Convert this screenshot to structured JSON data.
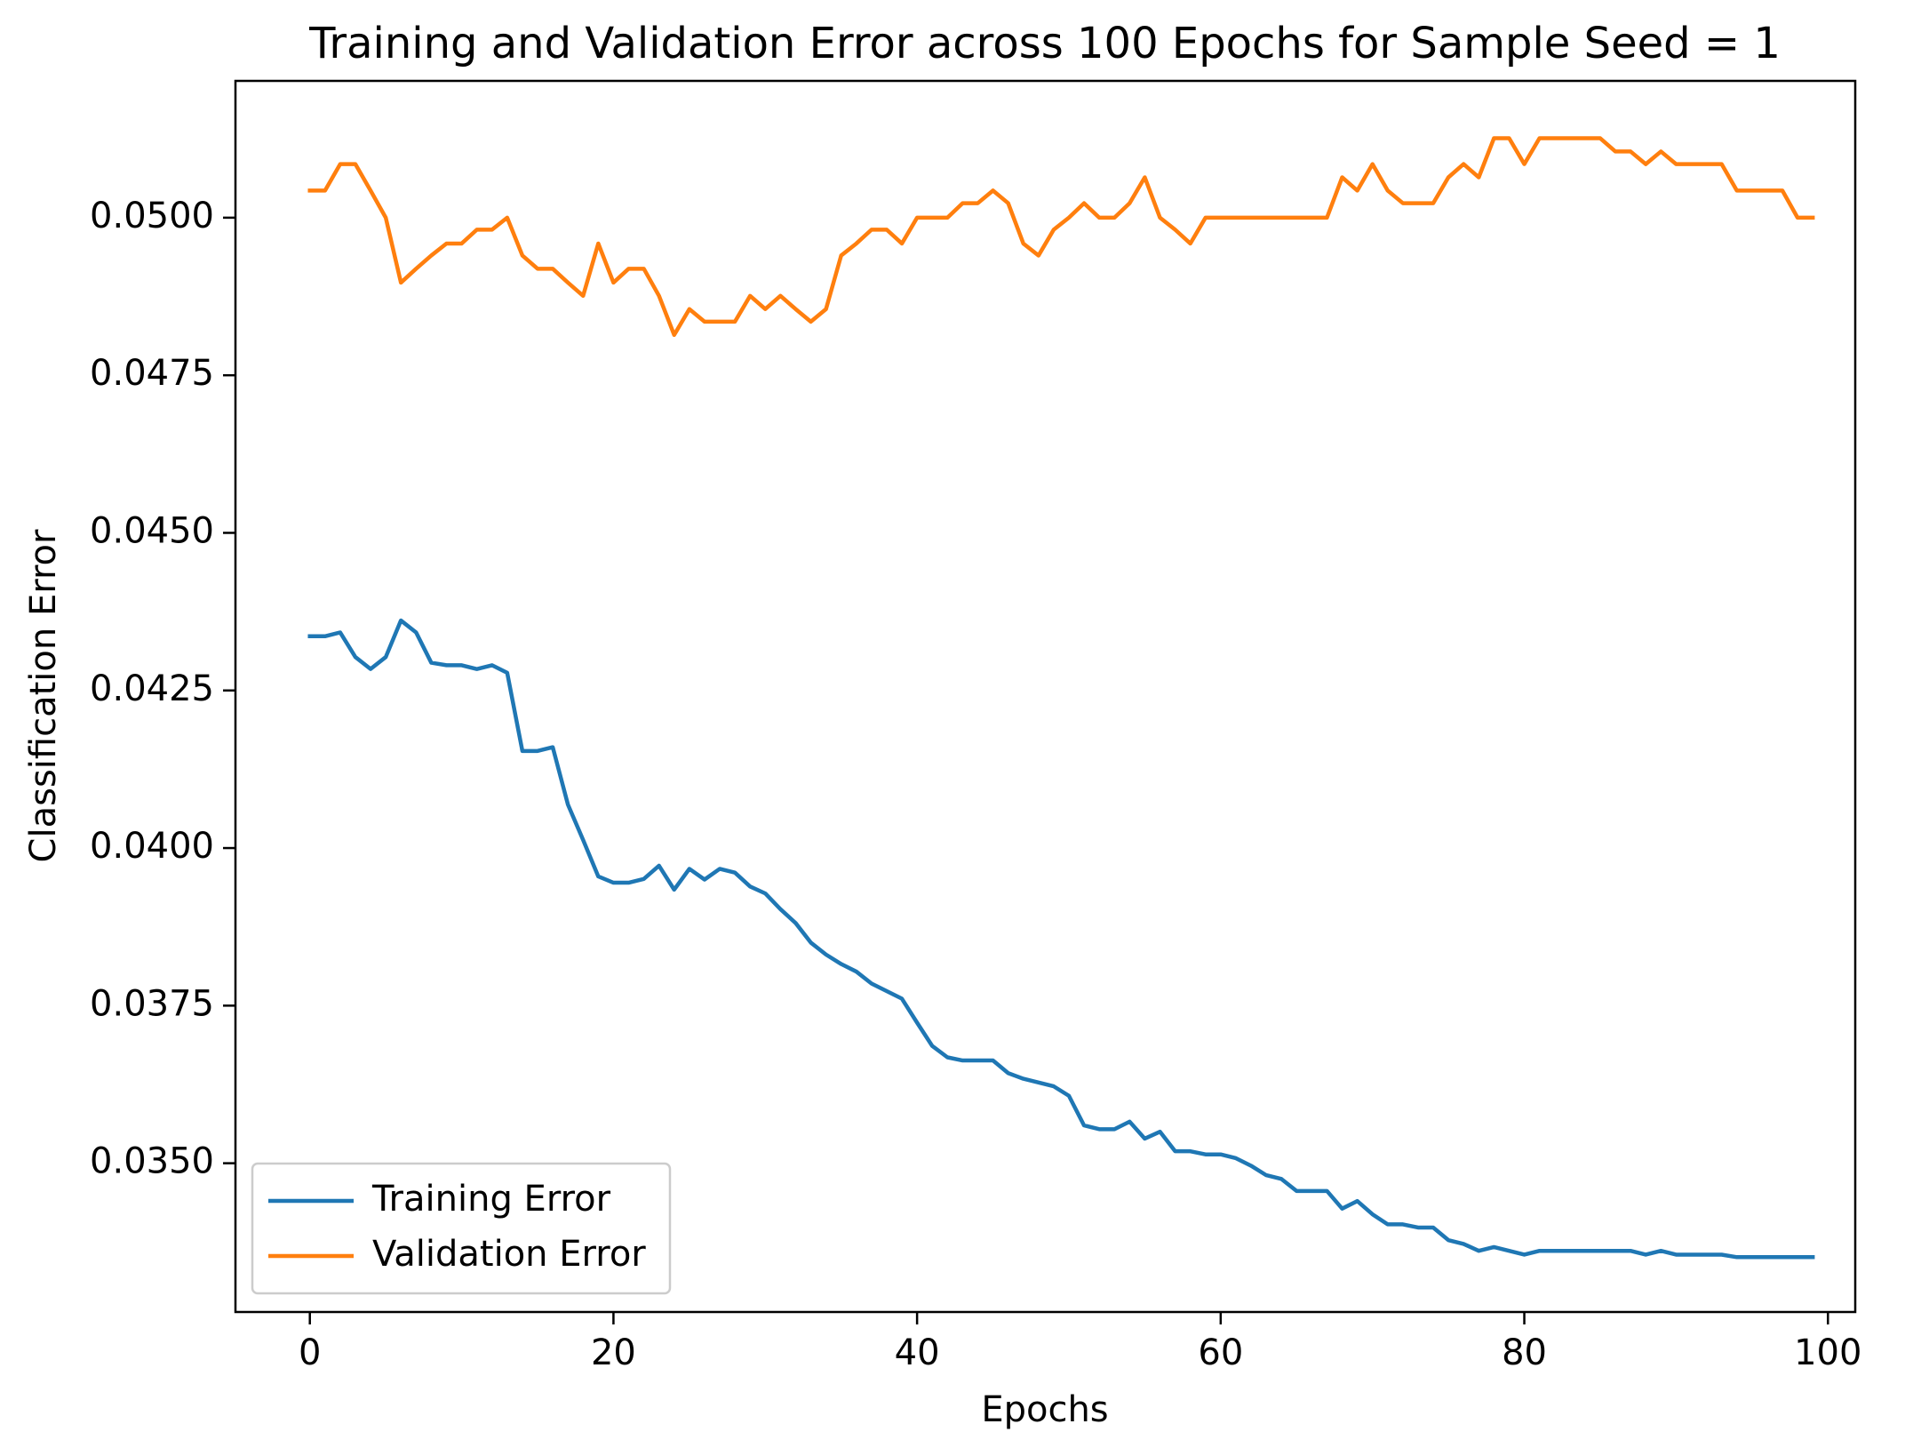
{
  "chart_data": {
    "type": "line",
    "title": "Training and Validation Error across 100 Epochs for Sample Seed = 1",
    "x_label": "Epochs",
    "y_label": "Classification Error",
    "x": [
      0,
      1,
      2,
      3,
      4,
      5,
      6,
      7,
      8,
      9,
      10,
      11,
      12,
      13,
      14,
      15,
      16,
      17,
      18,
      19,
      20,
      21,
      22,
      23,
      24,
      25,
      26,
      27,
      28,
      29,
      30,
      31,
      32,
      33,
      34,
      35,
      36,
      37,
      38,
      39,
      40,
      41,
      42,
      43,
      44,
      45,
      46,
      47,
      48,
      49,
      50,
      51,
      52,
      53,
      54,
      55,
      56,
      57,
      58,
      59,
      60,
      61,
      62,
      63,
      64,
      65,
      66,
      67,
      68,
      69,
      70,
      71,
      72,
      73,
      74,
      75,
      76,
      77,
      78,
      79,
      80,
      81,
      82,
      83,
      84,
      85,
      86,
      87,
      88,
      89,
      90,
      91,
      92,
      93,
      94,
      95,
      96,
      97,
      98,
      99
    ],
    "series": [
      {
        "name": "Training Error",
        "color": "#1f77b4",
        "values": [
          0.04336,
          0.04336,
          0.04342,
          0.04303,
          0.04284,
          0.04303,
          0.04361,
          0.04342,
          0.04294,
          0.0429,
          0.0429,
          0.04284,
          0.0429,
          0.04278,
          0.04154,
          0.04154,
          0.0416,
          0.04069,
          0.04013,
          0.03955,
          0.03945,
          0.03945,
          0.03951,
          0.03972,
          0.03934,
          0.03967,
          0.0395,
          0.03967,
          0.03961,
          0.03939,
          0.03928,
          0.03903,
          0.03881,
          0.0385,
          0.03831,
          0.03816,
          0.03804,
          0.03785,
          0.03773,
          0.03761,
          0.03723,
          0.03686,
          0.03668,
          0.03663,
          0.03663,
          0.03663,
          0.03643,
          0.03634,
          0.03628,
          0.03622,
          0.03607,
          0.0356,
          0.03554,
          0.03554,
          0.03566,
          0.03539,
          0.0355,
          0.03519,
          0.03519,
          0.03514,
          0.03514,
          0.03508,
          0.03496,
          0.03481,
          0.03475,
          0.03456,
          0.03456,
          0.03456,
          0.03428,
          0.0344,
          0.03419,
          0.03403,
          0.03403,
          0.03398,
          0.03398,
          0.03378,
          0.03372,
          0.03361,
          0.03367,
          0.03361,
          0.03355,
          0.03361,
          0.03361,
          0.03361,
          0.03361,
          0.03361,
          0.03361,
          0.03361,
          0.03355,
          0.03361,
          0.03355,
          0.03355,
          0.03355,
          0.03355,
          0.03351,
          0.03351,
          0.03351,
          0.03351,
          0.03351,
          0.03351
        ]
      },
      {
        "name": "Validation Error",
        "color": "#ff7f0e",
        "values": [
          0.05043,
          0.05043,
          0.05085,
          0.05085,
          0.05043,
          0.05,
          0.04897,
          0.04919,
          0.0494,
          0.04959,
          0.04959,
          0.04981,
          0.04981,
          0.05,
          0.0494,
          0.04919,
          0.04919,
          0.04897,
          0.04876,
          0.04959,
          0.04897,
          0.04919,
          0.04919,
          0.04876,
          0.04814,
          0.04855,
          0.04835,
          0.04835,
          0.04835,
          0.04876,
          0.04855,
          0.04876,
          0.04855,
          0.04835,
          0.04855,
          0.0494,
          0.04959,
          0.04981,
          0.04981,
          0.04959,
          0.05,
          0.05,
          0.05,
          0.05023,
          0.05023,
          0.05043,
          0.05023,
          0.04959,
          0.0494,
          0.04981,
          0.05,
          0.05023,
          0.05,
          0.05,
          0.05023,
          0.05064,
          0.05,
          0.04981,
          0.04959,
          0.05,
          0.05,
          0.05,
          0.05,
          0.05,
          0.05,
          0.05,
          0.05,
          0.05,
          0.05064,
          0.05043,
          0.05085,
          0.05043,
          0.05023,
          0.05023,
          0.05023,
          0.05064,
          0.05085,
          0.05064,
          0.05126,
          0.05126,
          0.05085,
          0.05126,
          0.05126,
          0.05126,
          0.05126,
          0.05126,
          0.05105,
          0.05105,
          0.05085,
          0.05105,
          0.05085,
          0.05085,
          0.05085,
          0.05085,
          0.05043,
          0.05043,
          0.05043,
          0.05043,
          0.05,
          0.05
        ]
      }
    ],
    "xlim": [
      -4.9,
      101.8
    ],
    "xticks": [
      0,
      20,
      40,
      60,
      80,
      100
    ],
    "ylim": [
      0.03264,
      0.05217
    ],
    "yticks": [
      {
        "value": 0.035,
        "label": "0.0350"
      },
      {
        "value": 0.0375,
        "label": "0.0375"
      },
      {
        "value": 0.04,
        "label": "0.0400"
      },
      {
        "value": 0.0425,
        "label": "0.0425"
      },
      {
        "value": 0.045,
        "label": "0.0450"
      },
      {
        "value": 0.0475,
        "label": "0.0475"
      },
      {
        "value": 0.05,
        "label": "0.0500"
      }
    ],
    "grid": false,
    "legend": "lower left"
  }
}
